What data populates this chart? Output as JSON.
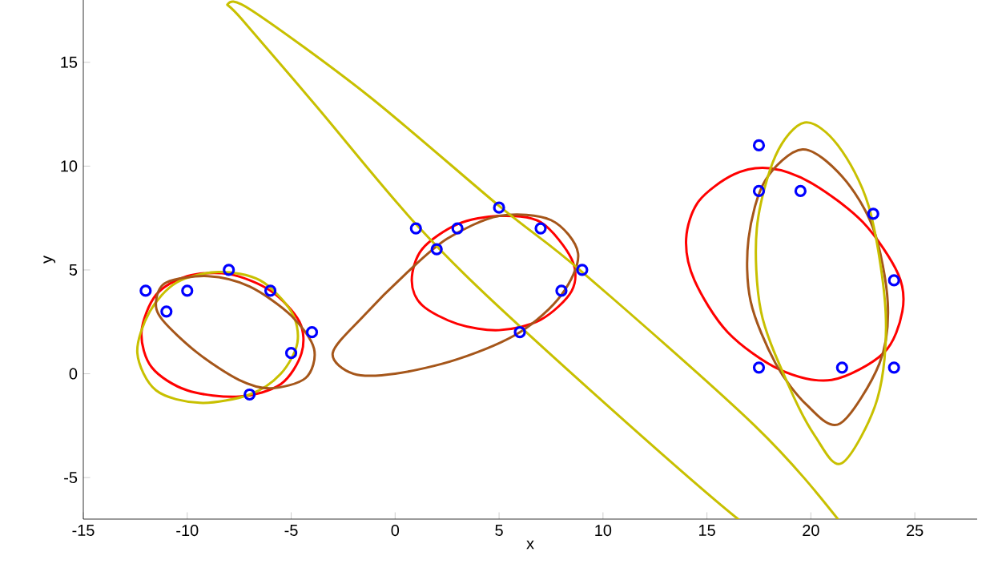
{
  "chart_data": {
    "type": "scatter",
    "xlabel": "x",
    "ylabel": "y",
    "xlim": [
      -15,
      28
    ],
    "ylim": [
      -7,
      18
    ],
    "xticks": [
      -15,
      -10,
      -5,
      0,
      5,
      10,
      15,
      20,
      25
    ],
    "yticks": [
      -5,
      0,
      5,
      10,
      15
    ],
    "grid": false,
    "series": [
      {
        "marker": "circle",
        "color": "#0000ff",
        "x": [
          -12,
          -11,
          -10,
          -8,
          -6,
          -5,
          -4,
          -7,
          1,
          2,
          3,
          5,
          7,
          8,
          9,
          6,
          17.5,
          17.5,
          19.5,
          23,
          24,
          17.5,
          21.5,
          24
        ],
        "values": [
          4,
          3,
          4,
          5,
          4,
          1,
          2,
          -1,
          7,
          6,
          7,
          8,
          7,
          4,
          5,
          2,
          11,
          8.8,
          8.8,
          7.7,
          4.5,
          0.3,
          0.3,
          0.3
        ]
      }
    ]
  }
}
